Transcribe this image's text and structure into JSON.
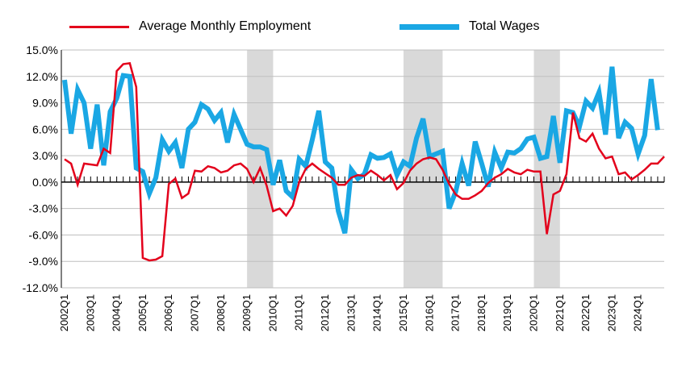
{
  "chart_data": {
    "type": "line",
    "title": "",
    "xlabel": "",
    "ylabel": "",
    "ylim": [
      -12,
      15
    ],
    "yticks": [
      -12,
      -9,
      -6,
      -3,
      0,
      3,
      6,
      9,
      12,
      15
    ],
    "ytick_labels": [
      "-12.0%",
      "-9.0%",
      "-6.0%",
      "-3.0%",
      "0.0%",
      "3.0%",
      "6.0%",
      "9.0%",
      "12.0%",
      "15.0%"
    ],
    "xtick_labels": [
      "2002Q1",
      "2003Q1",
      "2004Q1",
      "2005Q1",
      "2006Q1",
      "2007Q1",
      "2008Q1",
      "2009Q1",
      "2010Q1",
      "2011Q1",
      "2012Q1",
      "2013Q1",
      "2014Q1",
      "2015Q1",
      "2016Q1",
      "2017Q1",
      "2018Q1",
      "2019Q1",
      "2020Q1",
      "2021Q1",
      "2022Q1",
      "2023Q1",
      "2024Q1"
    ],
    "recession_bands": [
      [
        "2009Q1",
        "2010Q1"
      ],
      [
        "2015Q1",
        "2016Q3"
      ],
      [
        "2020Q1",
        "2021Q1"
      ]
    ],
    "legend_position": "top",
    "grid": true,
    "series": [
      {
        "name": "Average Monthly Employment",
        "color": "#e3001b",
        "values": [
          2.6,
          2.1,
          -0.3,
          2.1,
          2.0,
          1.9,
          3.8,
          3.3,
          12.6,
          13.4,
          13.5,
          10.8,
          -8.6,
          -8.9,
          -8.8,
          -8.4,
          -0.2,
          0.4,
          -1.8,
          -1.3,
          1.3,
          1.2,
          1.8,
          1.6,
          1.1,
          1.3,
          1.9,
          2.1,
          1.5,
          0.0,
          1.6,
          -0.4,
          -3.3,
          -3.0,
          -3.8,
          -2.7,
          0.0,
          1.5,
          2.1,
          1.5,
          1.0,
          0.5,
          -0.3,
          -0.3,
          0.5,
          0.8,
          0.7,
          1.3,
          0.8,
          0.2,
          0.8,
          -0.8,
          -0.1,
          1.3,
          2.1,
          2.6,
          2.8,
          2.6,
          1.4,
          -0.2,
          -1.4,
          -1.9,
          -1.9,
          -1.5,
          -1.0,
          -0.1,
          0.5,
          0.9,
          1.5,
          1.1,
          0.9,
          1.4,
          1.2,
          1.2,
          -5.9,
          -1.4,
          -1.0,
          0.9,
          7.9,
          5.0,
          4.6,
          5.5,
          3.8,
          2.7,
          2.9,
          0.9,
          1.1,
          0.3,
          0.8,
          1.4,
          2.1,
          2.1,
          2.9
        ]
      },
      {
        "name": "Total Wages",
        "color": "#1aa7e4",
        "values": [
          11.6,
          5.5,
          10.5,
          9.0,
          3.8,
          8.8,
          1.9,
          8.0,
          9.5,
          12.1,
          12.0,
          1.6,
          1.2,
          -1.3,
          0.5,
          4.8,
          3.5,
          4.5,
          1.6,
          6.0,
          6.8,
          8.8,
          8.3,
          7.0,
          7.9,
          4.5,
          7.7,
          6.0,
          4.3,
          4.0,
          4.0,
          3.7,
          -0.3,
          2.5,
          -1.0,
          -1.7,
          2.6,
          1.8,
          4.8,
          8.1,
          2.3,
          1.6,
          -3.3,
          -5.8,
          1.4,
          0.4,
          0.9,
          3.1,
          2.7,
          2.8,
          3.2,
          0.8,
          2.3,
          1.8,
          5.0,
          7.2,
          2.9,
          3.2,
          3.5,
          -3.0,
          -1.1,
          2.1,
          -0.4,
          4.6,
          2.1,
          -0.5,
          3.4,
          1.6,
          3.4,
          3.3,
          3.8,
          4.9,
          5.1,
          2.7,
          2.9,
          7.5,
          2.2,
          8.1,
          7.9,
          6.3,
          9.2,
          8.4,
          10.2,
          5.4,
          13.1,
          5.0,
          6.8,
          6.1,
          3.2,
          5.3,
          11.7,
          5.9
        ]
      }
    ]
  }
}
